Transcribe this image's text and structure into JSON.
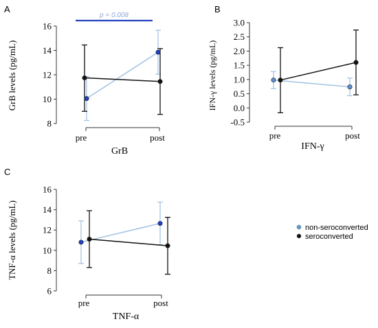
{
  "colors": {
    "non_seroconverted": "#a6c4e4",
    "seroconverted": "#111111",
    "marker_fill_blue": "#1f3fc4",
    "marker_fill_light": "#5f8fcf",
    "significance_bar": "#2340c0",
    "significance_text": "#8ea8d8",
    "axis": "#333333"
  },
  "legend": {
    "items": [
      {
        "label": "non-seroconverted",
        "color": "#5aa0d8"
      },
      {
        "label": "seroconverted",
        "color": "#111111"
      }
    ]
  },
  "chart_data": [
    {
      "panel_label": "A",
      "type": "line",
      "categories": [
        "pre",
        "post"
      ],
      "xlabel": "GrB",
      "ylabel": "GrB levels (pg/mL)",
      "ylim": [
        8,
        16
      ],
      "yticks": [
        "8",
        "10",
        "12",
        "14",
        "16"
      ],
      "annotation": "p = 0.008",
      "series": [
        {
          "name": "non-seroconverted",
          "values": [
            10.05,
            13.85
          ],
          "err_low": [
            8.25,
            12.05
          ],
          "err_high": [
            11.85,
            15.65
          ]
        },
        {
          "name": "seroconverted",
          "values": [
            11.75,
            11.45
          ],
          "err_low": [
            9.0,
            8.75
          ],
          "err_high": [
            14.45,
            14.15
          ]
        }
      ]
    },
    {
      "panel_label": "B",
      "type": "line",
      "categories": [
        "pre",
        "post"
      ],
      "xlabel": "IFN-γ",
      "ylabel": "IFN-γ levels (pg/mL)",
      "ylim": [
        -0.5,
        3.0
      ],
      "yticks": [
        "3.0",
        "2.5",
        "2.0",
        "1.5",
        "1.0",
        "0.5",
        "0.0",
        "-0.5"
      ],
      "series": [
        {
          "name": "non-seroconverted",
          "values": [
            0.98,
            0.74
          ],
          "err_low": [
            0.68,
            0.43
          ],
          "err_high": [
            1.28,
            1.05
          ]
        },
        {
          "name": "seroconverted",
          "values": [
            0.98,
            1.6
          ],
          "err_low": [
            -0.17,
            0.46
          ],
          "err_high": [
            2.12,
            2.74
          ]
        }
      ]
    },
    {
      "panel_label": "C",
      "type": "line",
      "categories": [
        "pre",
        "post"
      ],
      "xlabel": "TNF-α",
      "ylabel": "TNF-α levels (pg/mL)",
      "ylim": [
        6,
        16
      ],
      "yticks": [
        "6",
        "8",
        "10",
        "12",
        "14",
        "16"
      ],
      "series": [
        {
          "name": "non-seroconverted",
          "values": [
            10.8,
            12.65
          ],
          "err_low": [
            8.7,
            10.55
          ],
          "err_high": [
            12.9,
            14.75
          ]
        },
        {
          "name": "seroconverted",
          "values": [
            11.1,
            10.45
          ],
          "err_low": [
            8.3,
            7.65
          ],
          "err_high": [
            13.9,
            13.25
          ]
        }
      ]
    }
  ]
}
